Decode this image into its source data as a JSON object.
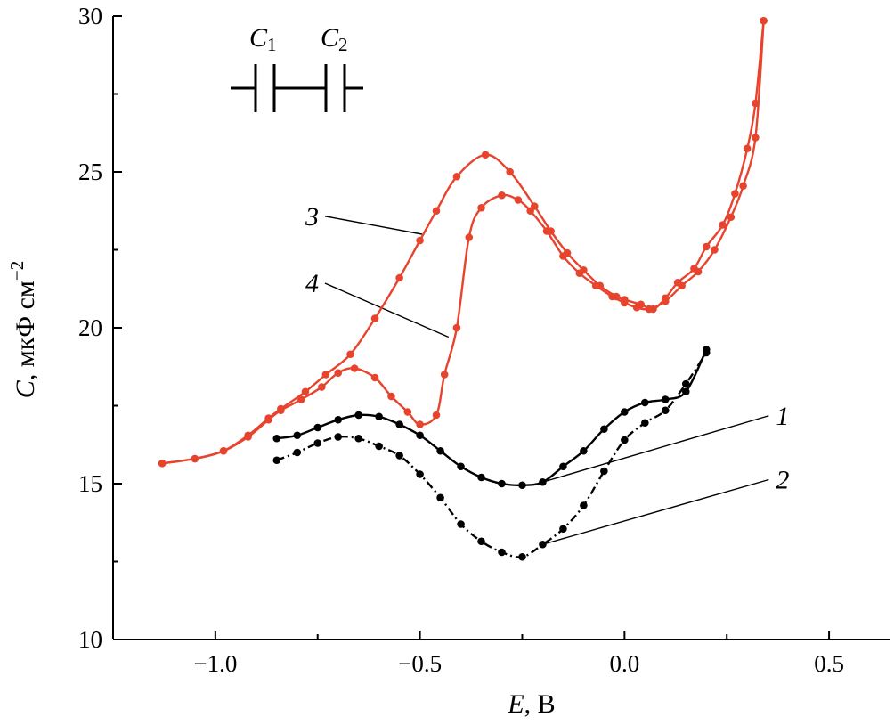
{
  "chart_data": {
    "type": "line",
    "title": "",
    "xlabel": {
      "var": "E",
      "unit": ", В"
    },
    "ylabel": {
      "var": "C",
      "unit": ", мкФ см",
      "sup": "−2"
    },
    "xlim": [
      -1.25,
      0.65
    ],
    "ylim": [
      10,
      30
    ],
    "xticks": [
      -1.0,
      -0.5,
      0.0,
      0.5
    ],
    "xtick_labels": [
      "−1.0",
      "−0.5",
      "0.0",
      "0.5"
    ],
    "yticks": [
      10,
      15,
      20,
      25,
      30
    ],
    "ytick_labels": [
      "10",
      "15",
      "20",
      "25",
      "30"
    ],
    "grid": false,
    "inset": {
      "description": "equivalent circuit: two capacitors in series",
      "c1_main": "C",
      "c1_sub": "1",
      "c2_main": "C",
      "c2_sub": "2"
    },
    "series": [
      {
        "name": "1",
        "color": "#000000",
        "dash": "solid",
        "label_point": [
          -0.2,
          15.05
        ],
        "x": [
          -0.85,
          -0.8,
          -0.75,
          -0.7,
          -0.65,
          -0.6,
          -0.55,
          -0.5,
          -0.45,
          -0.4,
          -0.35,
          -0.3,
          -0.25,
          -0.2,
          -0.15,
          -0.1,
          -0.05,
          0.0,
          0.05,
          0.1,
          0.15,
          0.2
        ],
        "y": [
          16.45,
          16.55,
          16.8,
          17.05,
          17.2,
          17.15,
          16.9,
          16.55,
          16.05,
          15.55,
          15.2,
          15.0,
          14.95,
          15.05,
          15.55,
          16.05,
          16.75,
          17.3,
          17.6,
          17.7,
          17.95,
          19.3
        ]
      },
      {
        "name": "2",
        "color": "#000000",
        "dash": "dashed",
        "label_point": [
          -0.2,
          13.05
        ],
        "x": [
          -0.85,
          -0.8,
          -0.75,
          -0.7,
          -0.65,
          -0.6,
          -0.55,
          -0.5,
          -0.45,
          -0.4,
          -0.35,
          -0.3,
          -0.25,
          -0.2,
          -0.15,
          -0.1,
          -0.05,
          0.0,
          0.05,
          0.1,
          0.15,
          0.2
        ],
        "y": [
          15.75,
          16.0,
          16.3,
          16.5,
          16.45,
          16.2,
          15.9,
          15.3,
          14.55,
          13.7,
          13.15,
          12.8,
          12.65,
          13.05,
          13.55,
          14.3,
          15.4,
          16.4,
          16.95,
          17.35,
          18.2,
          19.2
        ]
      },
      {
        "name": "3",
        "color": "#e8432d",
        "dash": "solid",
        "label_point": [
          -0.495,
          23.0
        ],
        "x": [
          -1.13,
          -1.05,
          -0.98,
          -0.92,
          -0.87,
          -0.84,
          -0.78,
          -0.73,
          -0.67,
          -0.61,
          -0.55,
          -0.5,
          -0.46,
          -0.41,
          -0.34,
          -0.28,
          -0.22,
          -0.18,
          -0.14,
          -0.1,
          -0.06,
          -0.02,
          0.0,
          0.04,
          0.07,
          0.1,
          0.13,
          0.17,
          0.2,
          0.24,
          0.27,
          0.3,
          0.32,
          0.34
        ],
        "y": [
          15.65,
          15.8,
          16.05,
          16.55,
          17.1,
          17.4,
          17.95,
          18.5,
          19.15,
          20.3,
          21.6,
          22.8,
          23.75,
          24.85,
          25.55,
          25.0,
          23.9,
          23.1,
          22.4,
          21.85,
          21.35,
          21.0,
          20.9,
          20.75,
          20.6,
          20.95,
          21.45,
          21.9,
          22.6,
          23.3,
          24.3,
          25.75,
          27.2,
          29.85
        ]
      },
      {
        "name": "4",
        "color": "#e8432d",
        "dash": "solid",
        "label_point": [
          -0.43,
          19.7
        ],
        "x": [
          -1.13,
          -1.05,
          -0.98,
          -0.92,
          -0.87,
          -0.84,
          -0.79,
          -0.74,
          -0.7,
          -0.66,
          -0.61,
          -0.57,
          -0.53,
          -0.5,
          -0.46,
          -0.44,
          -0.41,
          -0.38,
          -0.35,
          -0.3,
          -0.26,
          -0.23,
          -0.19,
          -0.15,
          -0.11,
          -0.07,
          -0.03,
          0.0,
          0.03,
          0.06,
          0.1,
          0.14,
          0.18,
          0.22,
          0.26,
          0.29,
          0.32,
          0.34
        ],
        "y": [
          15.65,
          15.8,
          16.05,
          16.5,
          17.05,
          17.35,
          17.7,
          18.1,
          18.55,
          18.7,
          18.4,
          17.8,
          17.3,
          16.9,
          17.2,
          18.5,
          20.0,
          22.9,
          23.85,
          24.25,
          24.1,
          23.75,
          23.1,
          22.3,
          21.75,
          21.35,
          21.0,
          20.8,
          20.65,
          20.6,
          20.85,
          21.35,
          21.8,
          22.5,
          23.55,
          24.55,
          26.1,
          29.85
        ]
      }
    ],
    "curve_labels": [
      {
        "series": "3",
        "text": "3",
        "x": -0.78,
        "y": 23.35
      },
      {
        "series": "4",
        "text": "4",
        "x": -0.78,
        "y": 21.2
      },
      {
        "series": "1",
        "text": "1",
        "x": 0.37,
        "y": 16.95
      },
      {
        "series": "2",
        "text": "2",
        "x": 0.37,
        "y": 14.9
      }
    ]
  }
}
